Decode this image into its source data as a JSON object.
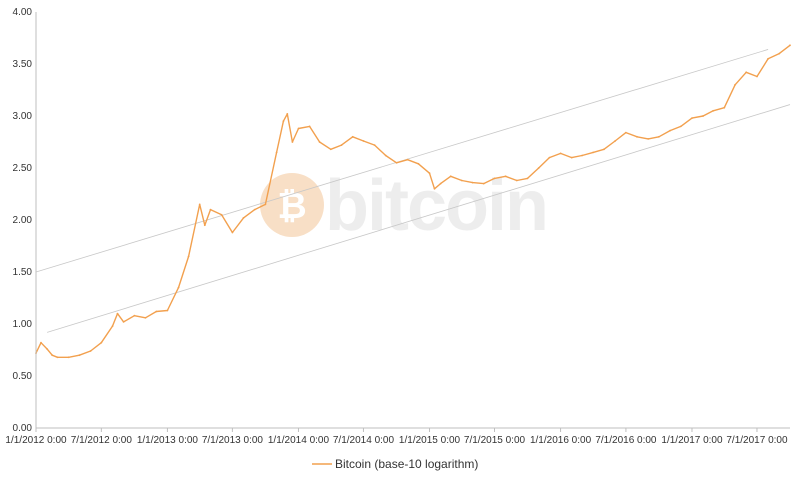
{
  "chart_data": {
    "type": "line",
    "title": "",
    "xlabel": "",
    "ylabel": "",
    "ylim": [
      0,
      4
    ],
    "yticks": [
      "0.00",
      "0.50",
      "1.00",
      "1.50",
      "2.00",
      "2.50",
      "3.00",
      "3.50",
      "4.00"
    ],
    "xlim": [
      "1/1/2012 0:00",
      "10/1/2017 0:00"
    ],
    "xticks": [
      "1/1/2012 0:00",
      "7/1/2012 0:00",
      "1/1/2013 0:00",
      "7/1/2013 0:00",
      "1/1/2014 0:00",
      "7/1/2014 0:00",
      "1/1/2015 0:00",
      "7/1/2015 0:00",
      "1/1/2016 0:00",
      "7/1/2016 0:00",
      "1/1/2017 0:00",
      "7/1/2017 0:00"
    ],
    "grid": false,
    "legend": "bottom",
    "watermark": "bitcoin",
    "colors": {
      "series": "#f2a04e",
      "trend": "#c8c8c8",
      "axis": "#bfbfbf",
      "watermark": "#ececec",
      "watermark_logo": "#f8dcc0"
    },
    "series": [
      {
        "name": "Bitcoin (base-10 logarithm)",
        "x": [
          "1/1/2012",
          "1/15/2012",
          "2/1/2012",
          "2/15/2012",
          "3/1/2012",
          "4/1/2012",
          "5/1/2012",
          "6/1/2012",
          "7/1/2012",
          "8/1/2012",
          "8/15/2012",
          "9/1/2012",
          "10/1/2012",
          "11/1/2012",
          "12/1/2012",
          "1/1/2013",
          "2/1/2013",
          "3/1/2013",
          "4/1/2013",
          "4/15/2013",
          "5/1/2013",
          "6/1/2013",
          "7/1/2013",
          "8/1/2013",
          "9/1/2013",
          "10/1/2013",
          "11/1/2013",
          "11/20/2013",
          "12/1/2013",
          "12/15/2013",
          "1/1/2014",
          "2/1/2014",
          "3/1/2014",
          "4/1/2014",
          "5/1/2014",
          "6/1/2014",
          "7/1/2014",
          "8/1/2014",
          "9/1/2014",
          "10/1/2014",
          "11/1/2014",
          "12/1/2014",
          "1/1/2015",
          "1/15/2015",
          "2/1/2015",
          "3/1/2015",
          "4/1/2015",
          "5/1/2015",
          "6/1/2015",
          "7/1/2015",
          "8/1/2015",
          "9/1/2015",
          "10/1/2015",
          "11/1/2015",
          "12/1/2015",
          "1/1/2016",
          "2/1/2016",
          "3/1/2016",
          "4/1/2016",
          "5/1/2016",
          "6/1/2016",
          "7/1/2016",
          "8/1/2016",
          "9/1/2016",
          "10/1/2016",
          "11/1/2016",
          "12/1/2016",
          "1/1/2017",
          "2/1/2017",
          "3/1/2017",
          "4/1/2017",
          "5/1/2017",
          "6/1/2017",
          "7/1/2017",
          "8/1/2017",
          "9/1/2017",
          "10/1/2017"
        ],
        "values": [
          0.72,
          0.82,
          0.76,
          0.7,
          0.68,
          0.68,
          0.7,
          0.74,
          0.82,
          0.98,
          1.1,
          1.02,
          1.08,
          1.06,
          1.12,
          1.13,
          1.35,
          1.65,
          2.15,
          1.95,
          2.1,
          2.05,
          1.88,
          2.02,
          2.1,
          2.15,
          2.65,
          2.95,
          3.02,
          2.75,
          2.88,
          2.9,
          2.75,
          2.68,
          2.72,
          2.8,
          2.76,
          2.72,
          2.62,
          2.55,
          2.58,
          2.54,
          2.45,
          2.3,
          2.35,
          2.42,
          2.38,
          2.36,
          2.35,
          2.4,
          2.42,
          2.38,
          2.4,
          2.5,
          2.6,
          2.64,
          2.6,
          2.62,
          2.65,
          2.68,
          2.76,
          2.84,
          2.8,
          2.78,
          2.8,
          2.86,
          2.9,
          2.98,
          3.0,
          3.05,
          3.08,
          3.3,
          3.42,
          3.38,
          3.55,
          3.6,
          3.68
        ]
      }
    ],
    "trendlines": [
      {
        "x": [
          "1/1/2012",
          "8/1/2017"
        ],
        "values": [
          1.5,
          3.64
        ]
      },
      {
        "x": [
          "2/1/2012",
          "10/1/2017"
        ],
        "values": [
          0.92,
          3.11
        ]
      }
    ]
  }
}
